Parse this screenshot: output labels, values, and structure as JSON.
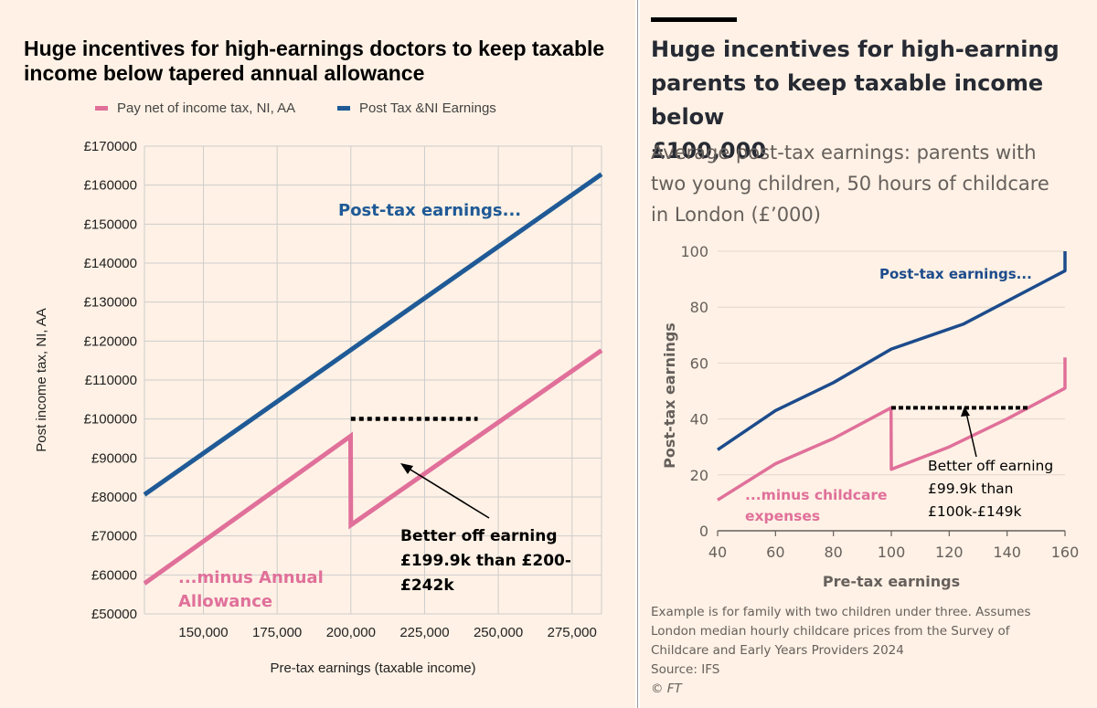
{
  "left": {
    "title": "Huge incentives for high-earnings doctors to keep taxable income below tapered annual allowance",
    "legend": [
      {
        "label": "Pay net of income tax, NI, AA",
        "color": "#e0709a"
      },
      {
        "label": "Post Tax &NI Earnings",
        "color": "#1f5a96"
      }
    ],
    "annotations": {
      "top": "Post-tax earnings...",
      "bottom": [
        "...minus Annual",
        "Allowance"
      ],
      "callout": [
        "Better off earning",
        "£199.9k than £200-",
        "£242k"
      ]
    }
  },
  "right": {
    "title": [
      "Huge incentives for high-earning",
      "parents to keep taxable income below",
      "£100,000"
    ],
    "subtitle": [
      "Average post-tax earnings: parents with",
      "two young children, 50 hours of childcare",
      "in London (£’000)"
    ],
    "annotations": {
      "top": "Post-tax earnings...",
      "bottom": [
        "...minus childcare",
        "expenses"
      ],
      "callout": [
        "Better off earning",
        "£99.9k than",
        "£100k-£149k"
      ]
    },
    "footnote": [
      "Example is for family with two children under three. Assumes",
      "London median hourly childcare prices from the Survey of",
      "Childcare and Early Years Providers 2024",
      "Source: IFS",
      "© FT"
    ]
  },
  "chart_data": [
    {
      "type": "line",
      "title": "Huge incentives for high-earnings doctors to keep taxable income below tapered annual allowance",
      "xlabel": "Pre-tax earnings (taxable income)",
      "ylabel": "Post income tax, NI, AA",
      "xlim": [
        130000,
        285000
      ],
      "ylim": [
        50000,
        170000
      ],
      "x_ticks": [
        150000,
        175000,
        200000,
        225000,
        250000,
        275000
      ],
      "x_tick_labels": [
        "150,000",
        "175,000",
        "200,000",
        "225,000",
        "250,000",
        "275,000"
      ],
      "y_ticks": [
        50000,
        60000,
        70000,
        80000,
        90000,
        100000,
        110000,
        120000,
        130000,
        140000,
        150000,
        160000,
        170000
      ],
      "y_tick_labels": [
        "£50000",
        "£60000",
        "£70000",
        "£80000",
        "£90000",
        "£100000",
        "£110000",
        "£120000",
        "£130000",
        "£140000",
        "£150000",
        "£160000",
        "£170000"
      ],
      "grid": true,
      "legend": "top",
      "series": [
        {
          "name": "Post Tax &NI Earnings",
          "color": "#1f5a96",
          "x": [
            130000,
            285000
          ],
          "y": [
            80600,
            162800
          ]
        },
        {
          "name": "Pay net of income tax, NI, AA",
          "color": "#e0709a",
          "x": [
            130000,
            199900,
            200000,
            285000
          ],
          "y": [
            57800,
            95600,
            72800,
            117600
          ]
        }
      ],
      "reference_line": {
        "x": [
          200000,
          243000
        ],
        "y": 95600,
        "style": "dotted"
      }
    },
    {
      "type": "line",
      "xlabel": "Pre-tax earnings",
      "ylabel": "Post-tax earnings",
      "xlim": [
        40,
        160
      ],
      "ylim": [
        0,
        100
      ],
      "x_ticks": [
        40,
        60,
        80,
        100,
        120,
        140,
        160
      ],
      "y_ticks": [
        0,
        20,
        40,
        60,
        80,
        100
      ],
      "grid": true,
      "series": [
        {
          "name": "Post-tax earnings...",
          "color": "#1c4b8c",
          "x": [
            40,
            60,
            80,
            100,
            125,
            160,
            160
          ],
          "y": [
            29,
            43,
            53,
            65,
            74,
            93,
            100
          ]
        },
        {
          "name": "...minus childcare expenses",
          "color": "#e0709a",
          "x": [
            40,
            60,
            80,
            99.9,
            100,
            120,
            140,
            160,
            160
          ],
          "y": [
            11,
            24,
            33,
            44,
            22,
            30,
            40,
            51,
            62
          ]
        }
      ],
      "reference_line": {
        "x": [
          100,
          148
        ],
        "y": 44,
        "style": "dotted"
      }
    }
  ]
}
